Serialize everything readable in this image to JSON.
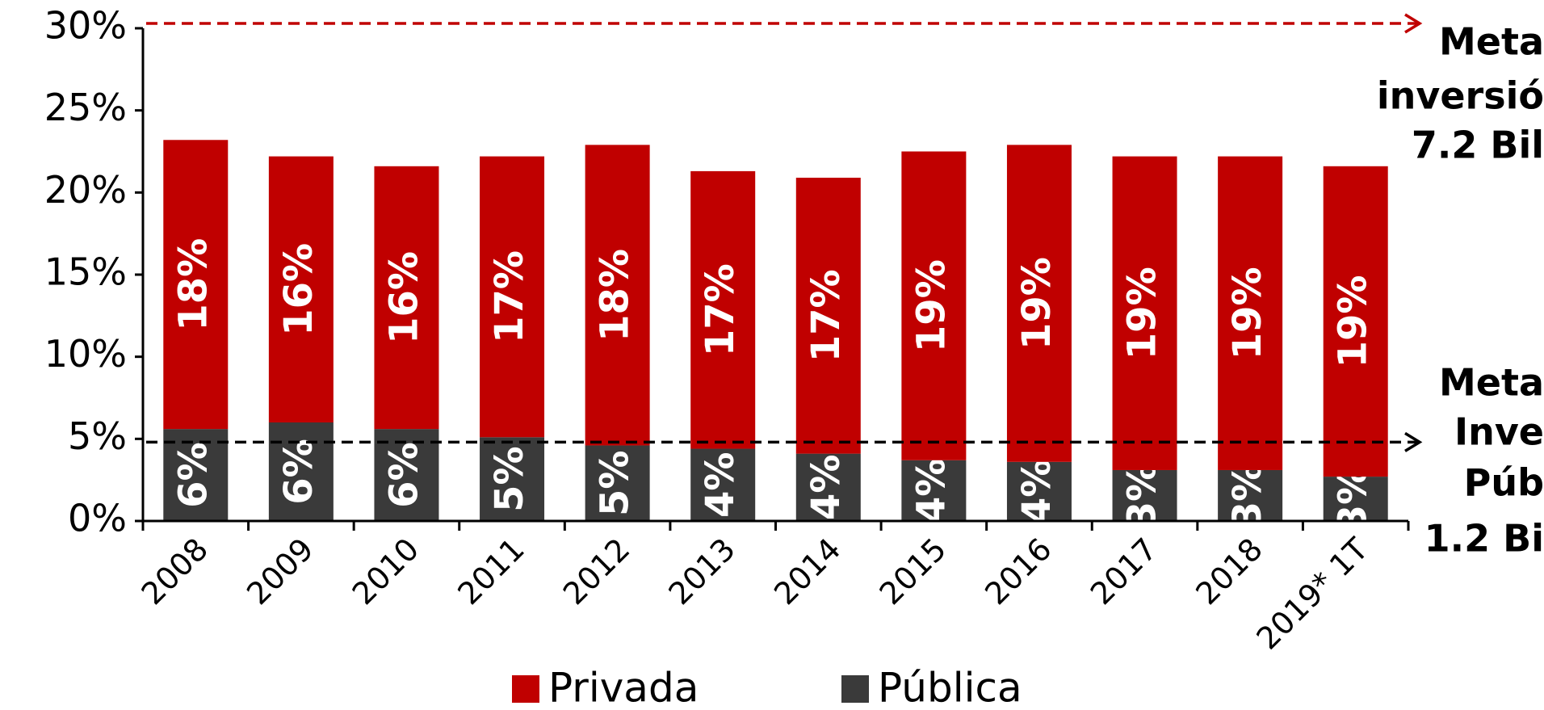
{
  "chart_data": {
    "type": "stacked_bar",
    "categories": [
      "2008",
      "2009",
      "2010",
      "2011",
      "2012",
      "2013",
      "2014",
      "2015",
      "2016",
      "2017",
      "2018",
      "2019* 1T"
    ],
    "series": [
      {
        "name": "Pública",
        "color": "#3a3a3a",
        "values": [
          5.6,
          6.0,
          5.6,
          5.1,
          4.6,
          4.4,
          4.1,
          3.7,
          3.6,
          3.1,
          3.1,
          2.7
        ],
        "value_labels": [
          "6%",
          "6%",
          "6%",
          "5%",
          "5%",
          "4%",
          "4%",
          "4%",
          "4%",
          "3%",
          "3%",
          "3%"
        ]
      },
      {
        "name": "Privada",
        "color": "#c00000",
        "values": [
          17.6,
          16.2,
          16.0,
          17.1,
          18.3,
          16.9,
          16.8,
          18.8,
          19.3,
          19.1,
          19.1,
          18.9
        ],
        "value_labels": [
          "18%",
          "16%",
          "16%",
          "17%",
          "18%",
          "17%",
          "17%",
          "19%",
          "19%",
          "19%",
          "19%",
          "19%"
        ]
      }
    ],
    "ylim": [
      0,
      30
    ],
    "yticks": [
      {
        "value": 0,
        "label": "0%"
      },
      {
        "value": 5,
        "label": "5%"
      },
      {
        "value": 10,
        "label": "10%"
      },
      {
        "value": 15,
        "label": "15%"
      },
      {
        "value": 20,
        "label": "20%"
      },
      {
        "value": 25,
        "label": "25%"
      },
      {
        "value": 30,
        "label": "30%"
      }
    ],
    "reference_lines": [
      {
        "value": 30,
        "color": "#c00000",
        "label": [
          "Meta",
          "inversió",
          "7.2 Bil"
        ]
      },
      {
        "value": 4.8,
        "color": "#000000",
        "label": [
          "Meta",
          "Inve",
          "Púb",
          "1.2 Bi"
        ]
      }
    ]
  }
}
